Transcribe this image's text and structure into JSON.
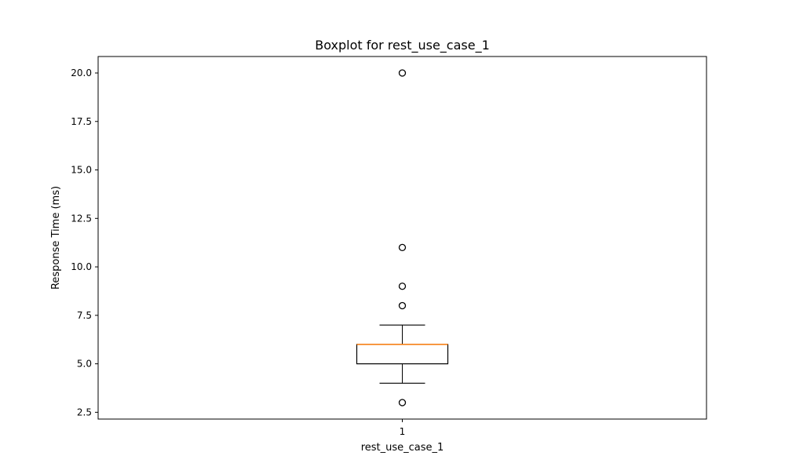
{
  "chart_data": {
    "type": "boxplot",
    "title": "Boxplot for rest_use_case_1",
    "xlabel": "rest_use_case_1",
    "ylabel": "Response Time (ms)",
    "ylim": [
      2.15,
      20.85
    ],
    "yticks": [
      2.5,
      5.0,
      7.5,
      10.0,
      12.5,
      15.0,
      17.5,
      20.0
    ],
    "ytick_labels": [
      "2.5",
      "5.0",
      "7.5",
      "10.0",
      "12.5",
      "15.0",
      "17.5",
      "20.0"
    ],
    "xtick_labels": [
      "1"
    ],
    "grid": false,
    "series": [
      {
        "position": 1,
        "q1": 5.0,
        "median": 6.0,
        "q3": 6.0,
        "whisker_low": 4.0,
        "whisker_high": 7.0,
        "outliers": [
          3.0,
          8.0,
          9.0,
          11.0,
          20.0
        ]
      }
    ],
    "colors": {
      "box": "#000000",
      "median": "#ff7f0e",
      "outlier_edge": "#000000"
    }
  }
}
